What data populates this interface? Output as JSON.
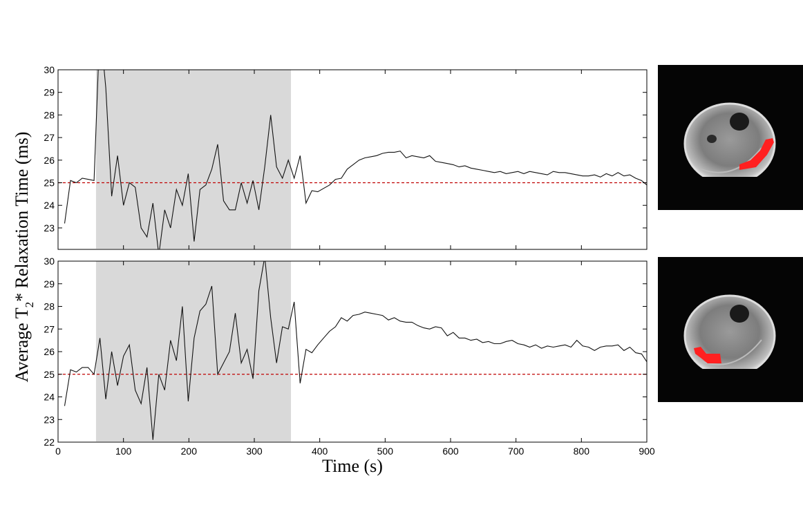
{
  "chart_data": [
    {
      "type": "line",
      "panel": "top",
      "shaded_region_x": [
        58,
        356
      ],
      "ylim": [
        22,
        30
      ],
      "xlim": [
        0,
        900
      ],
      "yticks": [
        "23",
        "24",
        "25",
        "26",
        "27",
        "28",
        "29",
        "30"
      ],
      "reference_line_y": 25,
      "series": [
        {
          "x": [
            10,
            19,
            28,
            37,
            46,
            55,
            64,
            73,
            82,
            91,
            100,
            109,
            118,
            127,
            136,
            145,
            154,
            163,
            172,
            181,
            190,
            199,
            208,
            217,
            226,
            235,
            244,
            253,
            262,
            271,
            280,
            289,
            298,
            307,
            316,
            325,
            334,
            343,
            352,
            361,
            370,
            379,
            388,
            397,
            406,
            415,
            424,
            433,
            442,
            451,
            460,
            469,
            478,
            487,
            496,
            505,
            514,
            523,
            532,
            541,
            550,
            559,
            568,
            577,
            586,
            595,
            604,
            613,
            622,
            631,
            640,
            649,
            658,
            667,
            676,
            685,
            694,
            703,
            712,
            721,
            730,
            739,
            748,
            757,
            766,
            775,
            784,
            793,
            802,
            811,
            820,
            829,
            838,
            847,
            856,
            865,
            874,
            883,
            892,
            900
          ],
          "values": [
            23.2,
            25.1,
            25.0,
            25.2,
            25.15,
            25.1,
            32,
            29.2,
            24.4,
            26.2,
            24.0,
            25.0,
            24.8,
            23.0,
            22.6,
            24.1,
            21.8,
            23.8,
            23.0,
            24.7,
            24.0,
            25.4,
            22.4,
            24.7,
            24.9,
            25.6,
            26.7,
            24.2,
            23.8,
            23.8,
            25.0,
            24.1,
            25.1,
            23.8,
            25.7,
            28.0,
            25.7,
            25.2,
            26.0,
            25.2,
            26.2,
            24.1,
            24.65,
            24.6,
            24.75,
            24.9,
            25.15,
            25.2,
            25.6,
            25.8,
            26.0,
            26.1,
            26.15,
            26.2,
            26.3,
            26.35,
            26.35,
            26.4,
            26.1,
            26.2,
            26.15,
            26.1,
            26.2,
            25.95,
            25.9,
            25.85,
            25.8,
            25.7,
            25.75,
            25.65,
            25.6,
            25.55,
            25.5,
            25.45,
            25.5,
            25.4,
            25.45,
            25.5,
            25.4,
            25.5,
            25.45,
            25.4,
            25.35,
            25.5,
            25.45,
            25.45,
            25.4,
            25.35,
            25.3,
            25.3,
            25.35,
            25.25,
            25.4,
            25.3,
            25.45,
            25.3,
            25.35,
            25.2,
            25.1,
            24.9
          ]
        }
      ]
    },
    {
      "type": "line",
      "panel": "bottom",
      "shaded_region_x": [
        58,
        356
      ],
      "ylim": [
        22,
        30
      ],
      "xlim": [
        0,
        900
      ],
      "yticks": [
        "22",
        "23",
        "24",
        "25",
        "26",
        "27",
        "28",
        "29",
        "30"
      ],
      "xticks": [
        "0",
        "100",
        "200",
        "300",
        "400",
        "500",
        "600",
        "700",
        "800",
        "900"
      ],
      "xlabel": "Time (s)",
      "reference_line_y": 25,
      "series": [
        {
          "x": [
            10,
            19,
            28,
            37,
            46,
            55,
            64,
            73,
            82,
            91,
            100,
            109,
            118,
            127,
            136,
            145,
            154,
            163,
            172,
            181,
            190,
            199,
            208,
            217,
            226,
            235,
            244,
            253,
            262,
            271,
            280,
            289,
            298,
            307,
            316,
            325,
            334,
            343,
            352,
            361,
            370,
            379,
            388,
            397,
            406,
            415,
            424,
            433,
            442,
            451,
            460,
            469,
            478,
            487,
            496,
            505,
            514,
            523,
            532,
            541,
            550,
            559,
            568,
            577,
            586,
            595,
            604,
            613,
            622,
            631,
            640,
            649,
            658,
            667,
            676,
            685,
            694,
            703,
            712,
            721,
            730,
            739,
            748,
            757,
            766,
            775,
            784,
            793,
            802,
            811,
            820,
            829,
            838,
            847,
            856,
            865,
            874,
            883,
            892,
            900
          ],
          "values": [
            23.6,
            25.2,
            25.1,
            25.3,
            25.3,
            25.0,
            26.6,
            23.9,
            26.0,
            24.5,
            25.8,
            26.3,
            24.3,
            23.7,
            25.3,
            22.1,
            25.0,
            24.3,
            26.5,
            25.6,
            28.0,
            23.8,
            26.6,
            27.8,
            28.1,
            28.9,
            25.0,
            25.5,
            26.0,
            27.7,
            25.5,
            26.1,
            24.8,
            28.7,
            30.2,
            27.5,
            25.5,
            27.1,
            27.0,
            28.2,
            24.6,
            26.1,
            25.95,
            26.3,
            26.6,
            26.9,
            27.1,
            27.5,
            27.35,
            27.6,
            27.65,
            27.75,
            27.7,
            27.65,
            27.6,
            27.4,
            27.5,
            27.35,
            27.3,
            27.3,
            27.15,
            27.05,
            27.0,
            27.1,
            27.05,
            26.7,
            26.85,
            26.6,
            26.6,
            26.5,
            26.55,
            26.4,
            26.45,
            26.35,
            26.35,
            26.45,
            26.5,
            26.35,
            26.3,
            26.2,
            26.3,
            26.15,
            26.25,
            26.2,
            26.25,
            26.3,
            26.2,
            26.5,
            26.25,
            26.2,
            26.05,
            26.2,
            26.25,
            26.25,
            26.3,
            26.05,
            26.2,
            25.95,
            25.9,
            25.55
          ]
        }
      ]
    }
  ],
  "ylabel_parts": {
    "pre": "Average T",
    "sub": "2",
    "post": "* Relaxation Time (ms)"
  },
  "colors": {
    "line": "#111111",
    "shade": "#d9d9d9",
    "reference": "#c00000",
    "roi": "#ff2020"
  },
  "mri_images": [
    {
      "name": "top-mri",
      "roi": "right-lateral"
    },
    {
      "name": "bottom-mri",
      "roi": "left-posterior"
    }
  ]
}
